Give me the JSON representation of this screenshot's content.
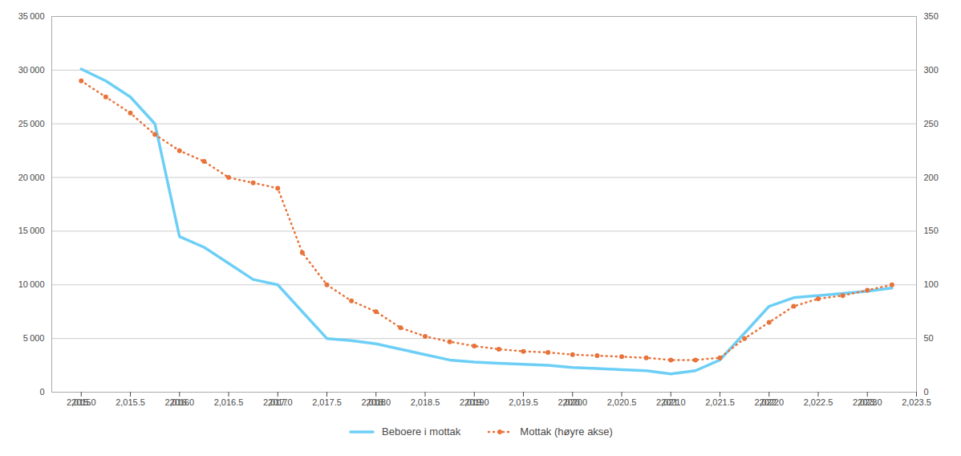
{
  "chart_data": {
    "type": "line",
    "x": [
      2015.0,
      2015.25,
      2015.5,
      2015.75,
      2016.0,
      2016.25,
      2016.5,
      2016.75,
      2017.0,
      2017.25,
      2017.5,
      2017.75,
      2018.0,
      2018.25,
      2018.5,
      2018.75,
      2019.0,
      2019.25,
      2019.5,
      2019.75,
      2020.0,
      2020.25,
      2020.5,
      2020.75,
      2021.0,
      2021.25,
      2021.5,
      2021.75,
      2022.0,
      2022.25,
      2022.5,
      2022.75,
      2023.0,
      2023.25
    ],
    "series": [
      {
        "name": "Beboere i mottak",
        "color": "#6dcff6",
        "line_style": "solid",
        "values": [
          30100,
          29000,
          27500,
          25000,
          14500,
          13500,
          12000,
          10500,
          10000,
          7500,
          5000,
          4800,
          4500,
          4000,
          3500,
          3000,
          2800,
          2700,
          2600,
          2500,
          2300,
          2200,
          2100,
          2000,
          1700,
          2000,
          3000,
          5500,
          8000,
          8800,
          9000,
          9200,
          9400,
          9700
        ]
      },
      {
        "name": "Mottak (høyre akse)",
        "color": "#e8733a",
        "axis": "y2",
        "line_style": "dotted",
        "marker": "circle",
        "values": [
          290,
          275,
          260,
          240,
          225,
          215,
          200,
          195,
          190,
          130,
          100,
          85,
          75,
          60,
          52,
          47,
          43,
          40,
          38,
          37,
          35,
          34,
          33,
          32,
          30,
          30,
          32,
          50,
          65,
          80,
          87,
          90,
          95,
          100
        ]
      }
    ],
    "xlim": [
      2014.7,
      2023.5
    ],
    "xticks": [
      2015,
      2016,
      2017,
      2018,
      2019,
      2020,
      2021,
      2022,
      2023
    ],
    "ylim": [
      0,
      35000
    ],
    "yticks": [
      0,
      {
        "value": 5000,
        "label": "5 000"
      },
      {
        "value": 10000,
        "label": "10 000"
      },
      {
        "value": 15000,
        "label": "15 000"
      },
      {
        "value": 20000,
        "label": "20 000"
      },
      {
        "value": 25000,
        "label": "25 000"
      },
      {
        "value": 30000,
        "label": "30 000"
      },
      {
        "value": 35000,
        "label": "35 000"
      }
    ],
    "y2lim": [
      0,
      350
    ],
    "y2ticks": [
      0,
      50,
      100,
      150,
      200,
      250,
      300,
      350
    ],
    "grid": true,
    "legend": "bottom"
  }
}
